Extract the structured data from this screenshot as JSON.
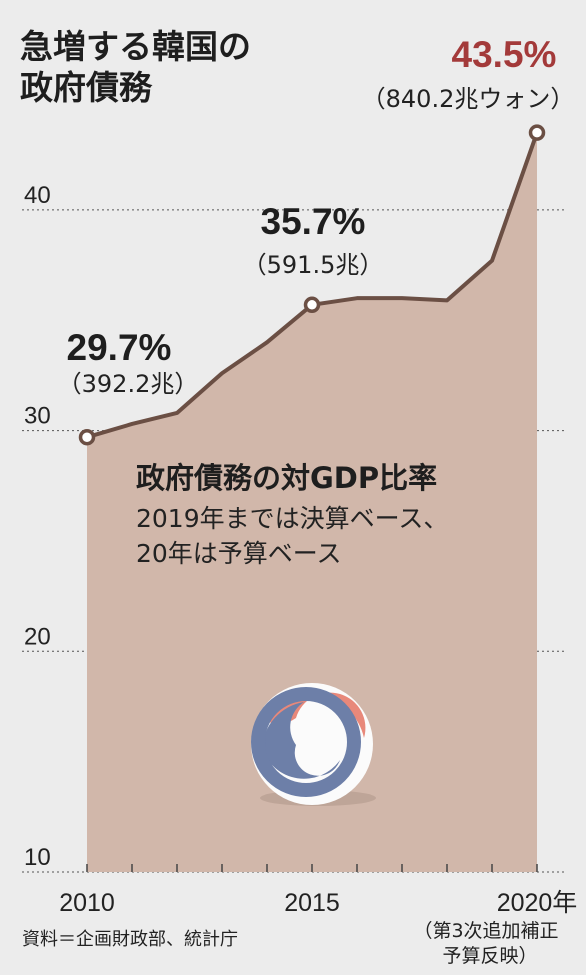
{
  "title_lines": [
    "急増する韓国の",
    "政府債務"
  ],
  "source": "資料＝企画財政部、統計庁",
  "chart_data": {
    "type": "area",
    "title": "急増する韓国の政府債務",
    "ylim": [
      10,
      45
    ],
    "yticks": [
      10,
      20,
      30,
      40
    ],
    "grid": true,
    "x": [
      2010,
      2011,
      2012,
      2013,
      2014,
      2015,
      2016,
      2017,
      2018,
      2019,
      2020
    ],
    "values": [
      29.7,
      30.3,
      30.8,
      32.6,
      34.0,
      35.7,
      36.0,
      36.0,
      35.9,
      37.7,
      43.5
    ],
    "xtick_values": [
      2010,
      2015,
      2020
    ],
    "xtick_labels": [
      "2010",
      "2015",
      "2020年"
    ],
    "xtick_note": [
      "（第3次追加補正",
      "予算反映）"
    ],
    "annotations": [
      {
        "x": 2010,
        "pct": "29.7%",
        "amount": "（392.2兆）"
      },
      {
        "x": 2015,
        "pct": "35.7%",
        "amount": "（591.5兆）"
      },
      {
        "x": 2020,
        "pct": "43.5%",
        "amount": "（840.2兆ウォン）"
      }
    ],
    "description": {
      "title": "政府債務の対GDP比率",
      "lines": [
        "2019年までは決算ベース、",
        "20年は予算ベース"
      ]
    },
    "colors": {
      "area": "#d1b7aa",
      "line": "#6b4f44",
      "highlight": "#a33a3a",
      "background": "#ececec"
    }
  }
}
